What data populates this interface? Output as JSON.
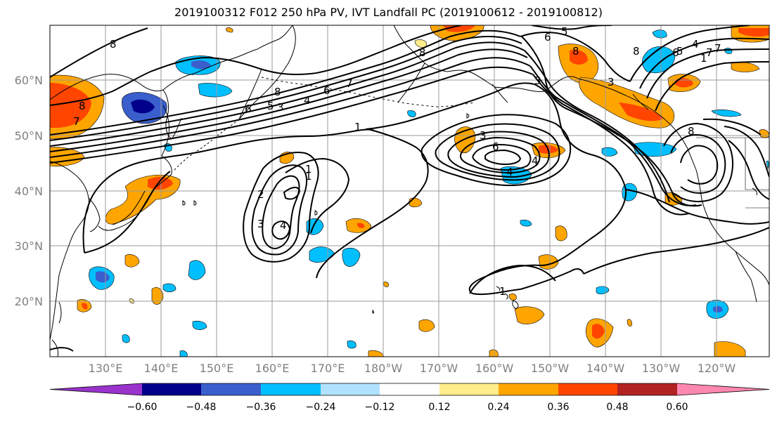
{
  "title": "2019100312 F012 250 hPa PV, IVT Landfall PC (2019100612 - 2019100812)",
  "lat_labels": [
    "60°N",
    "50°N",
    "40°N",
    "30°N",
    "20°N"
  ],
  "lon_labels": [
    "130°E",
    "140°E",
    "150°E",
    "160°E",
    "170°E",
    "180°W",
    "170°W",
    "160°W",
    "150°W",
    "140°W",
    "130°W",
    "120°W"
  ],
  "colorbar": {
    "labels": [
      "−0.60",
      "−0.48",
      "−0.36",
      "−0.24",
      "−0.12",
      "0.12",
      "0.24",
      "0.36",
      "0.48",
      "0.60"
    ],
    "colors": [
      "#9933cc",
      "#00008b",
      "#3a5fcd",
      "#00bfff",
      "#b0e2ff",
      "#ffffff",
      "#ffec8b",
      "#ffa500",
      "#ff4500",
      "#b22222",
      "#ff88b0"
    ]
  },
  "contour_labels": [
    "8",
    "6",
    "5",
    "8",
    "8",
    "8",
    "7",
    "6",
    "5",
    "4",
    "3",
    "8",
    "7",
    "6",
    "4",
    "3",
    "1",
    "1",
    "2",
    "3",
    "4",
    "6",
    "4",
    "3",
    "1",
    "8",
    "7",
    "6",
    "5",
    "4",
    "3",
    "1",
    "8",
    "7",
    "1"
  ]
}
